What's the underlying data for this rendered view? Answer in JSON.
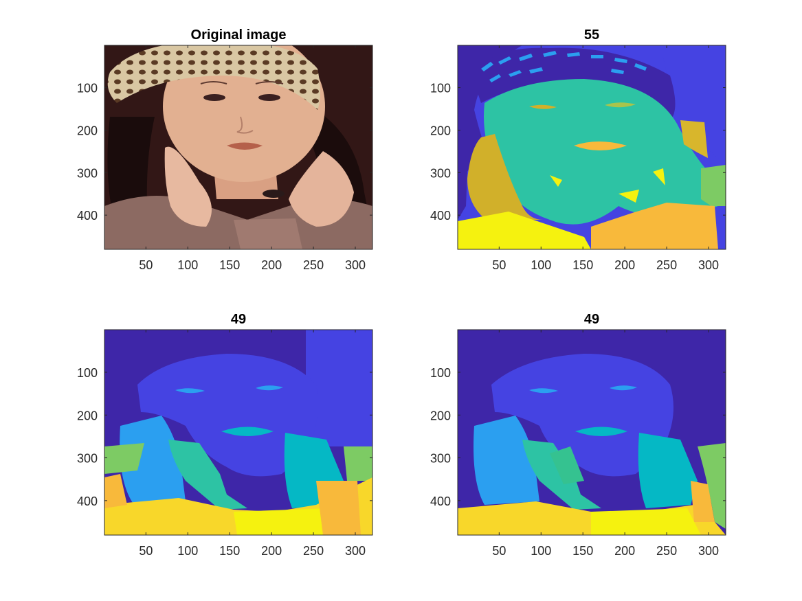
{
  "chart_data": [
    {
      "type": "heatmap",
      "title": "Original image",
      "xticks": [
        50,
        100,
        150,
        200,
        250,
        300
      ],
      "yticks": [
        100,
        200,
        300,
        400
      ],
      "xlim": [
        0.5,
        320.5
      ],
      "ylim": [
        0.5,
        480.5
      ],
      "y_direction": "reverse",
      "content": "photo"
    },
    {
      "type": "heatmap",
      "title": "55",
      "xticks": [
        50,
        100,
        150,
        200,
        250,
        300
      ],
      "yticks": [
        100,
        200,
        300,
        400
      ],
      "xlim": [
        0.5,
        320.5
      ],
      "ylim": [
        0.5,
        480.5
      ],
      "y_direction": "reverse",
      "colormap": "parula",
      "content": "segmentation"
    },
    {
      "type": "heatmap",
      "title": "49",
      "xticks": [
        50,
        100,
        150,
        200,
        250,
        300
      ],
      "yticks": [
        100,
        200,
        300,
        400
      ],
      "xlim": [
        0.5,
        320.5
      ],
      "ylim": [
        0.5,
        480.5
      ],
      "y_direction": "reverse",
      "colormap": "parula",
      "content": "segmentation"
    },
    {
      "type": "heatmap",
      "title": "49",
      "xticks": [
        50,
        100,
        150,
        200,
        250,
        300
      ],
      "yticks": [
        100,
        200,
        300,
        400
      ],
      "xlim": [
        0.5,
        320.5
      ],
      "ylim": [
        0.5,
        480.5
      ],
      "y_direction": "reverse",
      "colormap": "parula",
      "content": "segmentation"
    }
  ],
  "colors": {
    "parula_dark_blue": "#3e26a8",
    "parula_blue": "#4543e2",
    "parula_light_blue": "#2b9ff0",
    "parula_cyan": "#05b8c5",
    "parula_teal": "#2dc3a4",
    "parula_green": "#7dcb64",
    "parula_orange": "#f8b93b",
    "parula_yellow": "#f5f20f"
  }
}
